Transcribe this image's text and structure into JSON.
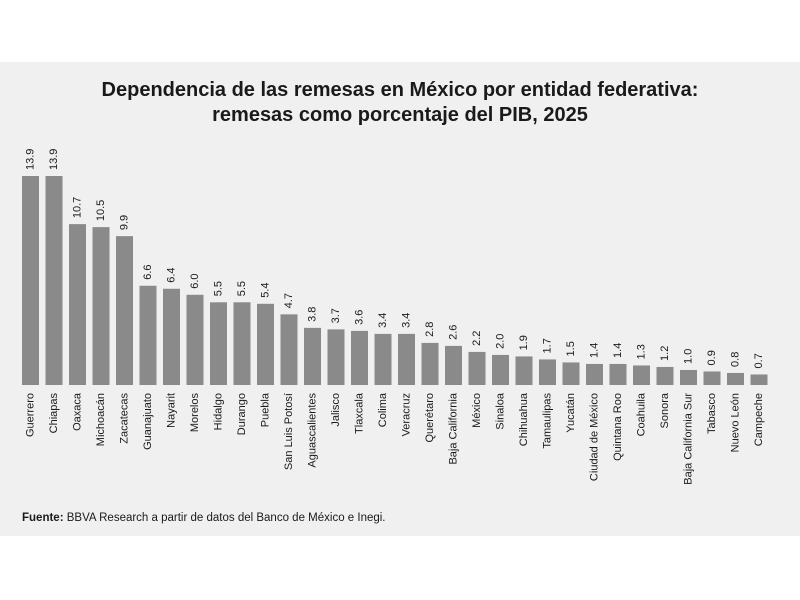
{
  "title_line1": "Dependencia de las remesas en México por entidad federativa:",
  "title_line2": "remesas como porcentaje del PIB, 2025",
  "source_label": "Fuente:",
  "source_text": " BBVA Research a partir de datos del Banco de México e Inegi.",
  "colors": {
    "bar": "#8a8a8a",
    "panel": "#f0f0f0",
    "text": "#1a1a1a"
  },
  "chart_data": {
    "type": "bar",
    "categories": [
      "Guerrero",
      "Chiapas",
      "Oaxaca",
      "Michoacán",
      "Zacatecas",
      "Guanajuato",
      "Nayarit",
      "Morelos",
      "Hidalgo",
      "Durango",
      "Puebla",
      "San Luis Potosí",
      "Aguascalientes",
      "Jalisco",
      "Tlaxcala",
      "Colima",
      "Veracruz",
      "Querétaro",
      "Baja California",
      "México",
      "Sinaloa",
      "Chihuahua",
      "Tamaulipas",
      "Yucatán",
      "Ciudad de México",
      "Quintana Roo",
      "Coahuila",
      "Sonora",
      "Baja California Sur",
      "Tabasco",
      "Nuevo León",
      "Campeche"
    ],
    "values": [
      13.9,
      13.9,
      10.7,
      10.5,
      9.9,
      6.6,
      6.4,
      6.0,
      5.5,
      5.5,
      5.4,
      4.7,
      3.8,
      3.7,
      3.6,
      3.4,
      3.4,
      2.8,
      2.6,
      2.2,
      2.0,
      1.9,
      1.7,
      1.5,
      1.4,
      1.4,
      1.3,
      1.2,
      1.0,
      0.9,
      0.8,
      0.7
    ],
    "labels": [
      "13.9",
      "13.9",
      "10.7",
      "10.5",
      "9.9",
      "6.6",
      "6.4",
      "6.0",
      "5.5",
      "5.5",
      "5.4",
      "4.7",
      "3.8",
      "3.7",
      "3.6",
      "3.4",
      "3.4",
      "2.8",
      "2.6",
      "2.2",
      "2.0",
      "1.9",
      "1.7",
      "1.5",
      "1.4",
      "1.4",
      "1.3",
      "1.2",
      "1.0",
      "0.9",
      "0.8",
      "0.7"
    ],
    "title": "Dependencia de las remesas en México por entidad federativa: remesas como porcentaje del PIB, 2025",
    "ylim": [
      0,
      13.9
    ],
    "grid": false,
    "legend": "none"
  }
}
